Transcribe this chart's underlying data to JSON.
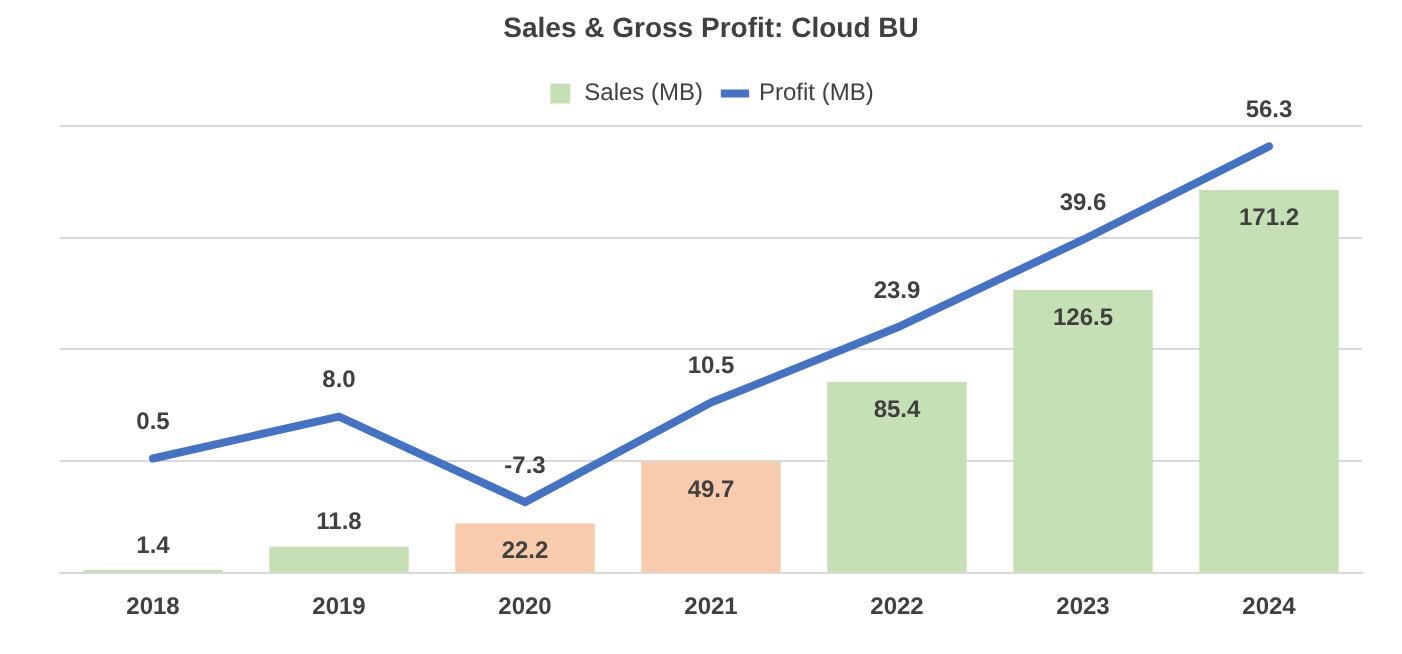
{
  "chart_data": {
    "type": "bar",
    "title": "Sales & Gross Profit: Cloud BU",
    "categories": [
      "2018",
      "2019",
      "2020",
      "2021",
      "2022",
      "2023",
      "2024"
    ],
    "series": [
      {
        "name": "Sales (MB)",
        "color": "#c5e0b4",
        "colors": [
          "#c5e0b4",
          "#c5e0b4",
          "#f8cbad",
          "#f8cbad",
          "#c5e0b4",
          "#c5e0b4",
          "#c5e0b4"
        ],
        "values": [
          1.4,
          11.8,
          22.2,
          49.7,
          85.4,
          126.5,
          171.2
        ],
        "value_labels": [
          "1.4",
          "11.8",
          "22.2",
          "49.7",
          "85.4",
          "126.5",
          "171.2"
        ]
      },
      {
        "name": "Profit (MB)",
        "type": "line",
        "axis": "y2",
        "color": "#4472c4",
        "values": [
          0.5,
          8.0,
          -7.3,
          10.5,
          23.9,
          39.6,
          56.3
        ],
        "value_labels": [
          "0.5",
          "8.0",
          "-7.3",
          "10.5",
          "23.9",
          "39.6",
          "56.3"
        ]
      }
    ],
    "ylim": [
      0,
      200
    ],
    "yticks": [
      {
        "value": 0,
        "label": null
      },
      {
        "value": 50,
        "label": null
      },
      {
        "value": 100,
        "label": null
      },
      {
        "value": 150,
        "label": null
      },
      {
        "value": 200,
        "label": null
      }
    ],
    "y2lim": [
      -20,
      60
    ],
    "grid": "y",
    "legend": "top",
    "tick_labels": "x",
    "marker": "none",
    "line_style": "solid"
  }
}
